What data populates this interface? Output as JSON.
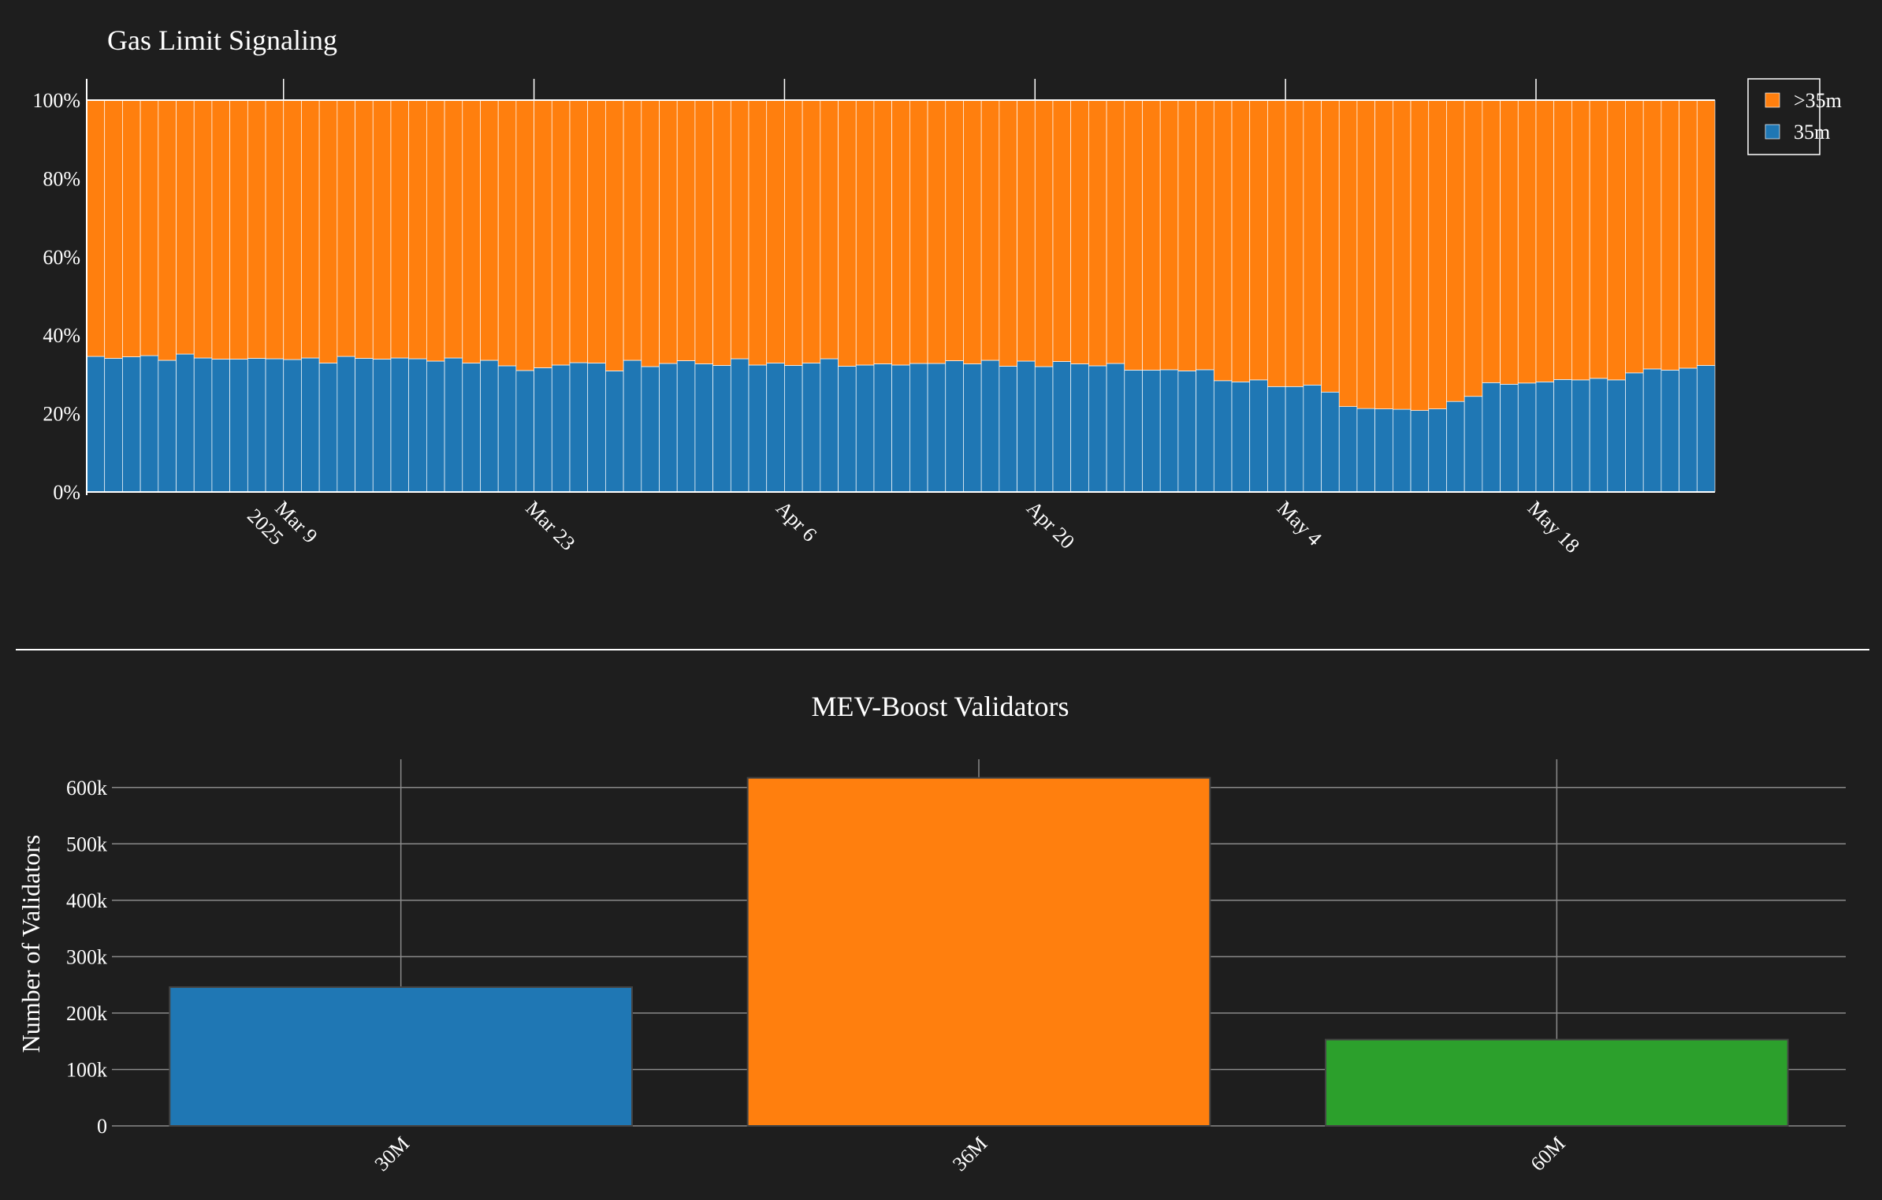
{
  "colors": {
    "background": "#1e1e1e",
    "series_35m": "#1f77b4",
    "series_gt35m": "#ff7f0e",
    "bar_30M": "#1f77b4",
    "bar_36M": "#ff7f0e",
    "bar_60M": "#2ca02c",
    "grid": "#8a8a8a",
    "axis": "#ffffff"
  },
  "chart_data": [
    {
      "type": "bar",
      "stacked": true,
      "normalized": "percent",
      "title": "Gas Limit Signaling",
      "xlabel": "",
      "ylabel": "",
      "ylim": [
        0,
        100
      ],
      "y_ticks": [
        "0%",
        "20%",
        "40%",
        "60%",
        "80%",
        "100%"
      ],
      "x_start": "2025-02-26",
      "x_end": "2025-05-27",
      "x_ticks": [
        {
          "date": "2025-03-09",
          "label": "Mar 9",
          "sublabel": "2025"
        },
        {
          "date": "2025-03-23",
          "label": "Mar 23",
          "sublabel": ""
        },
        {
          "date": "2025-04-06",
          "label": "Apr 6",
          "sublabel": ""
        },
        {
          "date": "2025-04-20",
          "label": "Apr 20",
          "sublabel": ""
        },
        {
          "date": "2025-05-04",
          "label": "May 4",
          "sublabel": ""
        },
        {
          "date": "2025-05-18",
          "label": "May 18",
          "sublabel": ""
        }
      ],
      "grid": false,
      "legend_position": "top-right",
      "series": [
        {
          "name": "35m",
          "color": "#1f77b4",
          "values": [
            34.6,
            34.1,
            34.5,
            34.8,
            33.6,
            35.2,
            34.2,
            33.9,
            33.9,
            34.1,
            34.0,
            33.8,
            34.2,
            32.9,
            34.6,
            34.1,
            33.9,
            34.2,
            34.0,
            33.4,
            34.2,
            32.9,
            33.6,
            32.2,
            31.0,
            31.7,
            32.4,
            33.0,
            32.9,
            30.9,
            33.6,
            32.0,
            32.8,
            33.5,
            32.7,
            32.3,
            34.0,
            32.4,
            32.9,
            32.3,
            32.9,
            34.0,
            32.1,
            32.4,
            32.7,
            32.4,
            32.8,
            32.8,
            33.5,
            32.7,
            33.6,
            32.1,
            33.4,
            32.0,
            33.3,
            32.7,
            32.2,
            32.8,
            31.1,
            31.1,
            31.2,
            30.9,
            31.2,
            28.4,
            28.1,
            28.6,
            26.9,
            26.9,
            27.3,
            25.5,
            21.8,
            21.3,
            21.2,
            21.1,
            20.8,
            21.2,
            23.1,
            24.4,
            27.9,
            27.5,
            27.8,
            28.1,
            28.7,
            28.6,
            29.0,
            28.6,
            30.4,
            31.4,
            31.1,
            31.6,
            32.3
          ]
        },
        {
          "name": ">35m",
          "color": "#ff7f0e",
          "values": [
            65.4,
            65.9,
            65.5,
            65.2,
            66.4,
            64.8,
            65.8,
            66.1,
            66.1,
            65.9,
            66.0,
            66.2,
            65.8,
            67.1,
            65.4,
            65.9,
            66.1,
            65.8,
            66.0,
            66.6,
            65.8,
            67.1,
            66.4,
            67.8,
            69.0,
            68.3,
            67.6,
            67.0,
            67.1,
            69.1,
            66.4,
            68.0,
            67.2,
            66.5,
            67.3,
            67.7,
            66.0,
            67.6,
            67.1,
            67.7,
            67.1,
            66.0,
            67.9,
            67.6,
            67.3,
            67.6,
            67.2,
            67.2,
            66.5,
            67.3,
            66.4,
            67.9,
            66.6,
            68.0,
            66.7,
            67.3,
            67.8,
            67.2,
            68.9,
            68.9,
            68.8,
            69.1,
            68.8,
            71.6,
            71.9,
            71.4,
            73.1,
            73.1,
            72.7,
            74.5,
            78.2,
            78.7,
            78.8,
            78.9,
            79.2,
            78.8,
            76.9,
            75.6,
            72.1,
            72.5,
            72.2,
            71.9,
            71.3,
            71.4,
            71.0,
            71.4,
            69.6,
            68.6,
            68.9,
            68.4,
            67.7
          ]
        }
      ]
    },
    {
      "type": "bar",
      "title": "MEV-Boost Validators",
      "xlabel": "",
      "ylabel": "Number of Validators",
      "categories": [
        "30M",
        "36M",
        "60M"
      ],
      "values": [
        246000,
        617000,
        153000
      ],
      "bar_colors": [
        "#1f77b4",
        "#ff7f0e",
        "#2ca02c"
      ],
      "ylim": [
        0,
        650000
      ],
      "y_ticks": [
        {
          "value": 0,
          "label": "0"
        },
        {
          "value": 100000,
          "label": "100k"
        },
        {
          "value": 200000,
          "label": "200k"
        },
        {
          "value": 300000,
          "label": "300k"
        },
        {
          "value": 400000,
          "label": "400k"
        },
        {
          "value": 500000,
          "label": "500k"
        },
        {
          "value": 600000,
          "label": "600k"
        }
      ],
      "grid": true
    }
  ]
}
